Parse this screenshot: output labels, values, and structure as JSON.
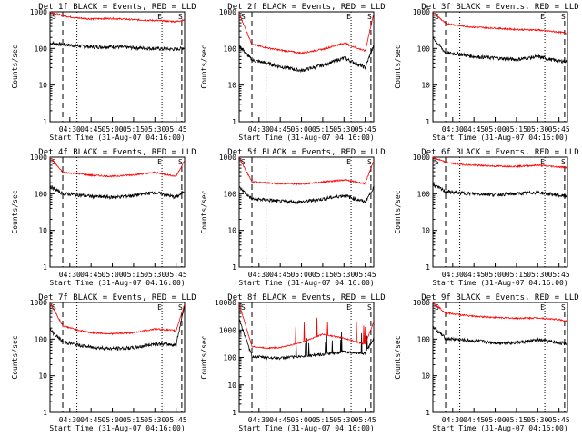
{
  "common": {
    "ylabel": "Counts/sec",
    "xlabel": "Start Time (31-Aug-07 04:16:00)",
    "xticks": [
      "04:30",
      "04:45",
      "05:00",
      "05:15",
      "05:30",
      "05:45"
    ],
    "yticks": [
      "1",
      "10",
      "100",
      "1000"
    ],
    "yticks_extended": [
      "1",
      "10",
      "100",
      "1000",
      "10000"
    ],
    "markers": [
      "S",
      "E",
      "S"
    ],
    "colors": {
      "events": "#000000",
      "lld": "#ff0000",
      "axes": "#000000"
    }
  },
  "chart_data": [
    {
      "type": "line",
      "title": "Det 1f BLACK = Events, RED = LLD",
      "ylim": [
        1,
        1000
      ],
      "log_y": true,
      "x": [
        "04:16",
        "04:25",
        "04:35",
        "04:45",
        "05:00",
        "05:15",
        "05:30",
        "05:45",
        "05:51"
      ],
      "series": [
        {
          "name": "Events",
          "color": "#000000",
          "values": [
            140,
            130,
            118,
            110,
            112,
            105,
            100,
            95,
            105
          ]
        },
        {
          "name": "LLD",
          "color": "#ff0000",
          "values": [
            1000,
            780,
            680,
            640,
            660,
            610,
            580,
            540,
            600
          ]
        }
      ]
    },
    {
      "type": "line",
      "title": "Det 2f BLACK = Events, RED = LLD",
      "ylim": [
        1,
        1000
      ],
      "log_y": true,
      "x": [
        "04:16",
        "04:25",
        "04:35",
        "04:45",
        "05:00",
        "05:15",
        "05:30",
        "05:45",
        "05:51"
      ],
      "series": [
        {
          "name": "Events",
          "color": "#000000",
          "values": [
            120,
            48,
            40,
            32,
            25,
            35,
            55,
            30,
            120
          ]
        },
        {
          "name": "LLD",
          "color": "#ff0000",
          "values": [
            900,
            130,
            105,
            90,
            75,
            95,
            140,
            85,
            900
          ]
        }
      ]
    },
    {
      "type": "line",
      "title": "Det 3f BLACK = Events, RED = LLD",
      "ylim": [
        1,
        1000
      ],
      "log_y": true,
      "x": [
        "04:16",
        "04:25",
        "04:35",
        "04:45",
        "05:00",
        "05:15",
        "05:30",
        "05:45",
        "05:51"
      ],
      "series": [
        {
          "name": "Events",
          "color": "#000000",
          "values": [
            200,
            75,
            70,
            60,
            55,
            50,
            60,
            45,
            45
          ]
        },
        {
          "name": "LLD",
          "color": "#ff0000",
          "values": [
            1000,
            480,
            420,
            380,
            360,
            330,
            320,
            280,
            260
          ]
        }
      ]
    },
    {
      "type": "line",
      "title": "Det 4f BLACK = Events, RED = LLD",
      "ylim": [
        1,
        1000
      ],
      "log_y": true,
      "x": [
        "04:16",
        "04:25",
        "04:35",
        "04:45",
        "05:00",
        "05:15",
        "05:30",
        "05:45",
        "05:51"
      ],
      "series": [
        {
          "name": "Events",
          "color": "#000000",
          "values": [
            160,
            100,
            95,
            85,
            80,
            90,
            110,
            80,
            120
          ]
        },
        {
          "name": "LLD",
          "color": "#ff0000",
          "values": [
            1000,
            380,
            360,
            320,
            300,
            330,
            380,
            300,
            800
          ]
        }
      ]
    },
    {
      "type": "line",
      "title": "Det 5f BLACK = Events, RED = LLD",
      "ylim": [
        1,
        1000
      ],
      "log_y": true,
      "x": [
        "04:16",
        "04:25",
        "04:35",
        "04:45",
        "05:00",
        "05:15",
        "05:30",
        "05:45",
        "05:51"
      ],
      "series": [
        {
          "name": "Events",
          "color": "#000000",
          "values": [
            150,
            72,
            68,
            62,
            60,
            72,
            90,
            60,
            150
          ]
        },
        {
          "name": "LLD",
          "color": "#ff0000",
          "values": [
            1000,
            210,
            200,
            190,
            185,
            210,
            240,
            190,
            800
          ]
        }
      ]
    },
    {
      "type": "line",
      "title": "Det 6f BLACK = Events, RED = LLD",
      "ylim": [
        1,
        1000
      ],
      "log_y": true,
      "x": [
        "04:16",
        "04:25",
        "04:35",
        "04:45",
        "05:00",
        "05:15",
        "05:30",
        "05:45",
        "05:51"
      ],
      "series": [
        {
          "name": "Events",
          "color": "#000000",
          "values": [
            180,
            115,
            105,
            100,
            95,
            100,
            110,
            90,
            85
          ]
        },
        {
          "name": "LLD",
          "color": "#ff0000",
          "values": [
            1000,
            720,
            640,
            600,
            570,
            560,
            600,
            540,
            520
          ]
        }
      ]
    },
    {
      "type": "line",
      "title": "Det 7f BLACK = Events, RED = LLD",
      "ylim": [
        1,
        1000
      ],
      "log_y": true,
      "x": [
        "04:16",
        "04:25",
        "04:35",
        "04:45",
        "05:00",
        "05:15",
        "05:30",
        "05:45",
        "05:51"
      ],
      "series": [
        {
          "name": "Events",
          "color": "#000000",
          "values": [
            180,
            85,
            70,
            60,
            55,
            58,
            75,
            70,
            900
          ]
        },
        {
          "name": "LLD",
          "color": "#ff0000",
          "values": [
            1000,
            230,
            180,
            150,
            140,
            150,
            190,
            170,
            900
          ]
        }
      ]
    },
    {
      "type": "line",
      "title": "Det 8f BLACK = Events, RED = LLD",
      "ylim": [
        1,
        10000
      ],
      "log_y": true,
      "x": [
        "04:16",
        "04:25",
        "04:35",
        "04:45",
        "05:00",
        "05:15",
        "05:30",
        "05:45",
        "05:51"
      ],
      "series": [
        {
          "name": "Events",
          "color": "#000000",
          "values": [
            2500,
            110,
            100,
            95,
            110,
            130,
            160,
            140,
            500
          ]
        },
        {
          "name": "LLD",
          "color": "#ff0000",
          "values": [
            9000,
            250,
            220,
            230,
            350,
            700,
            500,
            300,
            2000
          ]
        }
      ]
    },
    {
      "type": "line",
      "title": "Det 9f BLACK = Events, RED = LLD",
      "ylim": [
        1,
        1000
      ],
      "log_y": true,
      "x": [
        "04:16",
        "04:25",
        "04:35",
        "04:45",
        "05:00",
        "05:15",
        "05:30",
        "05:45",
        "05:51"
      ],
      "series": [
        {
          "name": "Events",
          "color": "#000000",
          "values": [
            220,
            105,
            95,
            90,
            80,
            80,
            95,
            80,
            75
          ]
        },
        {
          "name": "LLD",
          "color": "#ff0000",
          "values": [
            1000,
            520,
            460,
            420,
            390,
            370,
            380,
            340,
            300
          ]
        }
      ]
    }
  ]
}
